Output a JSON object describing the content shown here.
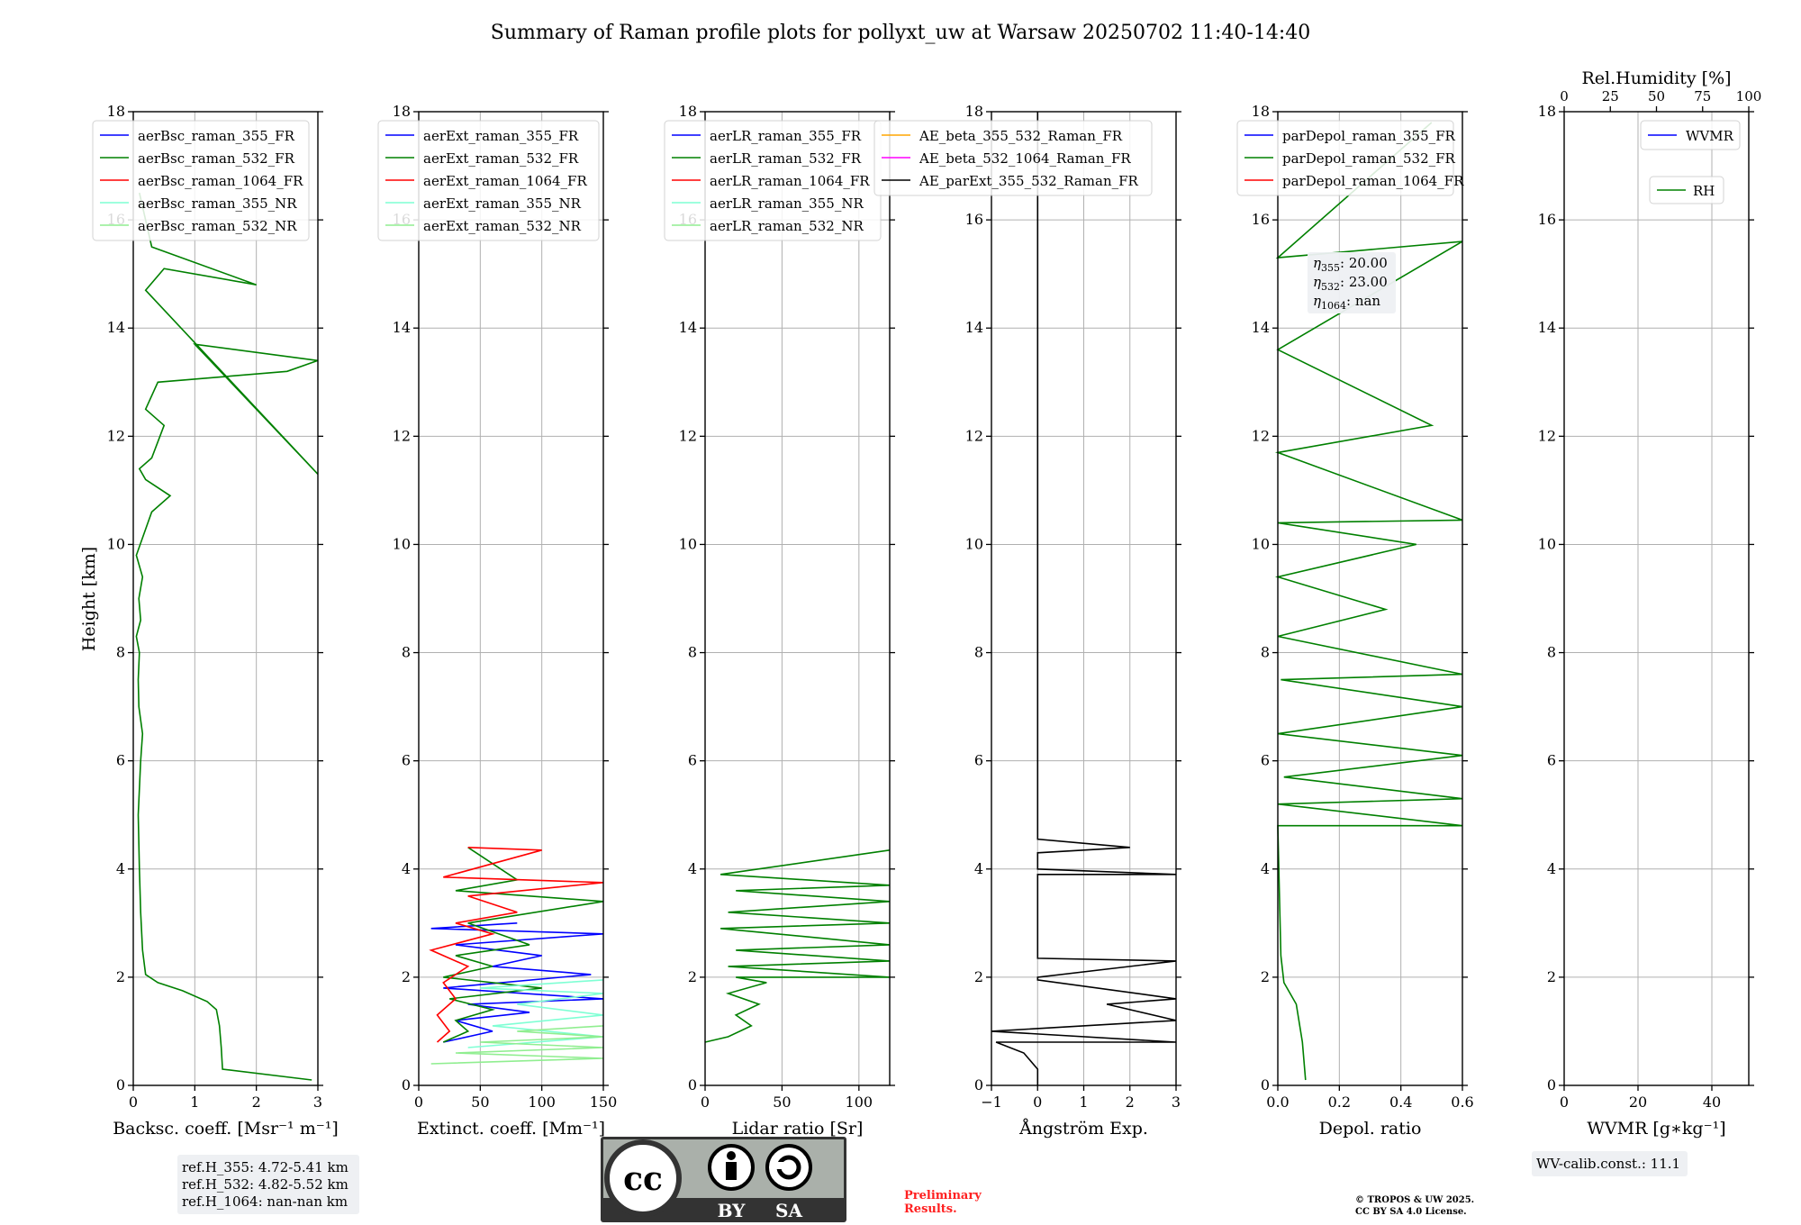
{
  "figure": {
    "title": "Summary of Raman profile plots for pollyxt_uw at Warsaw 20250702 11:40-14:40",
    "ylabel": "Height [km]",
    "y_ticks": [
      "0",
      "2",
      "4",
      "6",
      "8",
      "10",
      "12",
      "14",
      "16",
      "18"
    ],
    "ref_heights": [
      "ref.H_355: 4.72-5.41 km",
      "ref.H_532: 4.82-5.52 km",
      "ref.H_1064: nan-nan km"
    ],
    "eta_labels": [
      {
        "name": "η",
        "sub": "355",
        "value": ": 20.00"
      },
      {
        "name": "η",
        "sub": "532",
        "value": ": 23.00"
      },
      {
        "name": "η",
        "sub": "1064",
        "value": ": nan"
      }
    ],
    "wv_calib": "WV-calib.const.: 11.1",
    "license_badge": {
      "cc": "cc",
      "by": "BY",
      "sa": "SA"
    },
    "preliminary": [
      "Preliminary",
      "Results."
    ],
    "copyright": [
      "© TROPOS & UW 2025.",
      "CC BY SA 4.0 License."
    ],
    "colors": {
      "c355": "#0000ff",
      "c532": "#008000",
      "c1064": "#ff0000",
      "c355nr": "#7fffd4",
      "c532nr": "#90ee90",
      "ae1": "#ffa500",
      "ae2": "#ff00ff",
      "ae3": "#000000"
    }
  },
  "chart_data": [
    {
      "type": "line",
      "xlabel": "Backsc. coeff. [Msr⁻¹ m⁻¹]",
      "xlim": [
        0,
        3
      ],
      "x_ticks": [
        "0",
        "1",
        "2",
        "3"
      ],
      "ylim": [
        0,
        18
      ],
      "legend": [
        "aerBsc_raman_355_FR",
        "aerBsc_raman_532_FR",
        "aerBsc_raman_1064_FR",
        "aerBsc_raman_355_NR",
        "aerBsc_raman_532_NR"
      ],
      "series": [
        {
          "name": "aerBsc_raman_532_FR",
          "color": "c532",
          "x": [
            2.9,
            1.45,
            1.43,
            1.4,
            1.35,
            1.2,
            0.8,
            0.4,
            0.2,
            0.15,
            0.12,
            0.1,
            0.08,
            0.12,
            0.15,
            0.09,
            0.08,
            0.1,
            0.05,
            0.12,
            0.09,
            0.15,
            0.05,
            0.3,
            0.6,
            0.2,
            0.1,
            0.3,
            0.5,
            0.2,
            0.4,
            2.5,
            3,
            1,
            3,
            0.2,
            0.5,
            2,
            0.3,
            0.1
          ],
          "y": [
            0.1,
            0.3,
            0.7,
            1.1,
            1.4,
            1.55,
            1.75,
            1.9,
            2.05,
            2.5,
            3.2,
            4.0,
            5.0,
            6.0,
            6.5,
            7.0,
            7.5,
            8.0,
            8.3,
            8.6,
            9.0,
            9.4,
            9.8,
            10.6,
            10.9,
            11.2,
            11.4,
            11.6,
            12.2,
            12.5,
            13.0,
            13.2,
            13.4,
            13.7,
            11.3,
            14.7,
            15.1,
            14.8,
            15.5,
            16.5
          ]
        }
      ]
    },
    {
      "type": "line",
      "xlabel": "Extinct. coeff. [Mm⁻¹]",
      "xlim": [
        0,
        150
      ],
      "x_ticks": [
        "0",
        "50",
        "100",
        "150"
      ],
      "ylim": [
        0,
        18
      ],
      "legend": [
        "aerExt_raman_355_FR",
        "aerExt_raman_532_FR",
        "aerExt_raman_1064_FR",
        "aerExt_raman_355_NR",
        "aerExt_raman_532_NR"
      ],
      "series": [
        {
          "name": "aerExt_raman_355_FR",
          "color": "c355",
          "x": [
            20,
            60,
            30,
            90,
            40,
            150,
            20,
            140,
            60,
            100,
            30,
            150,
            10,
            80
          ],
          "y": [
            0.8,
            1.0,
            1.2,
            1.35,
            1.5,
            1.6,
            1.8,
            2.05,
            2.2,
            2.4,
            2.6,
            2.8,
            2.9,
            3.0
          ]
        },
        {
          "name": "aerExt_raman_532_FR",
          "color": "c532",
          "x": [
            20,
            40,
            30,
            60,
            25,
            100,
            20,
            60,
            30,
            90,
            40,
            150,
            30,
            80,
            40
          ],
          "y": [
            0.8,
            1.0,
            1.2,
            1.4,
            1.6,
            1.8,
            2.0,
            2.2,
            2.4,
            2.6,
            3.0,
            3.4,
            3.6,
            3.8,
            4.4
          ]
        },
        {
          "name": "aerExt_raman_1064_FR",
          "color": "c1064",
          "x": [
            15,
            25,
            15,
            30,
            20,
            40,
            10,
            60,
            30,
            80,
            40,
            150,
            20,
            100,
            40
          ],
          "y": [
            0.8,
            1.0,
            1.3,
            1.6,
            1.9,
            2.2,
            2.5,
            2.8,
            3.0,
            3.2,
            3.5,
            3.75,
            3.85,
            4.35,
            4.4
          ]
        },
        {
          "name": "aerExt_raman_355_NR",
          "color": "c355nr",
          "x": [
            40,
            150,
            60,
            150,
            80,
            150,
            50,
            150
          ],
          "y": [
            0.7,
            0.9,
            1.1,
            1.3,
            1.5,
            1.7,
            1.8,
            1.95
          ]
        },
        {
          "name": "aerExt_raman_532_NR",
          "color": "c532nr",
          "x": [
            10,
            150,
            30,
            150,
            50,
            150,
            80,
            150
          ],
          "y": [
            0.4,
            0.5,
            0.6,
            0.7,
            0.8,
            0.9,
            1.0,
            1.1
          ]
        }
      ]
    },
    {
      "type": "line",
      "xlabel": "Lidar ratio [Sr]",
      "xlim": [
        0,
        120
      ],
      "x_ticks": [
        "0",
        "50",
        "100"
      ],
      "ylim": [
        0,
        18
      ],
      "legend": [
        "aerLR_raman_355_FR",
        "aerLR_raman_532_FR",
        "aerLR_raman_1064_FR",
        "aerLR_raman_355_NR",
        "aerLR_raman_532_NR"
      ],
      "series": [
        {
          "name": "aerLR_raman_532_FR",
          "color": "c532",
          "x": [
            0,
            15,
            30,
            20,
            35,
            15,
            40,
            20,
            120,
            15,
            120,
            20,
            120,
            10,
            120,
            15,
            120,
            20,
            120,
            10,
            120
          ],
          "y": [
            0.8,
            0.9,
            1.1,
            1.3,
            1.5,
            1.7,
            1.9,
            2.0,
            2.0,
            2.2,
            2.3,
            2.5,
            2.6,
            2.9,
            3.0,
            3.2,
            3.4,
            3.6,
            3.7,
            3.9,
            4.35
          ]
        }
      ]
    },
    {
      "type": "line",
      "xlabel": "Ångström Exp.",
      "xlim": [
        -1,
        3
      ],
      "x_ticks": [
        "−1",
        "0",
        "1",
        "2",
        "3"
      ],
      "ylim": [
        0,
        18
      ],
      "legend": [
        "AE_beta_355_532_Raman_FR",
        "AE_beta_532_1064_Raman_FR",
        "AE_parExt_355_532_Raman_FR"
      ],
      "series": [
        {
          "name": "AE_parExt_355_532_Raman_FR",
          "color": "ae3",
          "x": [
            0,
            0,
            -0.3,
            -0.9,
            3,
            -1,
            3,
            1.5,
            3,
            0,
            0,
            3,
            0,
            0,
            3,
            0,
            0,
            2,
            0,
            0
          ],
          "y": [
            0,
            0.3,
            0.6,
            0.8,
            0.8,
            1.0,
            1.2,
            1.5,
            1.6,
            1.95,
            2.0,
            2.3,
            2.35,
            3.9,
            3.9,
            4.0,
            4.3,
            4.4,
            4.55,
            18
          ]
        }
      ]
    },
    {
      "type": "line",
      "xlabel": "Depol. ratio",
      "xlim": [
        0,
        0.6
      ],
      "x_ticks": [
        "0.0",
        "0.2",
        "0.4",
        "0.6"
      ],
      "ylim": [
        0,
        18
      ],
      "legend": [
        "parDepol_raman_355_FR",
        "parDepol_raman_532_FR",
        "parDepol_raman_1064_FR"
      ],
      "series": [
        {
          "name": "parDepol_raman_532_FR",
          "color": "c532",
          "x": [
            0.09,
            0.08,
            0.06,
            0.02,
            0.01,
            0.0,
            0.6,
            0.0,
            0.6,
            0.02,
            0.6,
            0.0,
            0.6,
            0.01,
            0.6,
            0.0,
            0.35,
            0.0,
            0.45,
            0.0,
            0.6,
            0.0,
            0.5,
            0.0,
            0.6,
            0.0,
            0.5
          ],
          "y": [
            0.1,
            0.8,
            1.5,
            1.9,
            2.4,
            4.8,
            4.8,
            5.2,
            5.3,
            5.7,
            6.1,
            6.5,
            7.0,
            7.5,
            7.6,
            8.3,
            8.8,
            9.4,
            10.0,
            10.4,
            10.45,
            11.7,
            12.2,
            13.6,
            15.6,
            15.3,
            17.8
          ]
        }
      ]
    },
    {
      "type": "line",
      "xlabel": "WVMR [g∗kg⁻¹]",
      "xlim": [
        0,
        50
      ],
      "x_ticks": [
        "0",
        "20",
        "40"
      ],
      "x2label": "Rel.Humidity [%]",
      "x2lim": [
        0,
        100
      ],
      "x2_ticks": [
        "0",
        "25",
        "50",
        "75",
        "100"
      ],
      "ylim": [
        0,
        18
      ],
      "legend": [
        "WVMR",
        "RH"
      ],
      "series": []
    }
  ]
}
